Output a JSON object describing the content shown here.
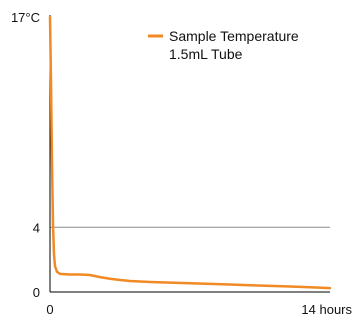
{
  "chart_data": {
    "type": "line",
    "title": "",
    "xlabel": "",
    "ylabel": "",
    "x_unit": "hours",
    "xlim": [
      0,
      14
    ],
    "ylim": [
      0,
      17
    ],
    "x_ticks": [
      {
        "value": 0,
        "label": "0"
      },
      {
        "value": 14,
        "label": "14 hours"
      }
    ],
    "y_ticks": [
      {
        "value": 0,
        "label": "0"
      },
      {
        "value": 4,
        "label": "4"
      },
      {
        "value": 17,
        "label": "17°C"
      }
    ],
    "reference_lines": [
      {
        "axis": "y",
        "value": 4,
        "color": "#8c8c8c"
      }
    ],
    "grid": false,
    "legend_placement": "top-right",
    "legend": {
      "line1": "Sample Temperature",
      "line2": "1.5mL Tube"
    },
    "series": [
      {
        "name": "Sample Temperature 1.5mL Tube",
        "color": "#f08a24",
        "points": [
          [
            0,
            17
          ],
          [
            0.05,
            13
          ],
          [
            0.1,
            8
          ],
          [
            0.15,
            4.2
          ],
          [
            0.2,
            2.3
          ],
          [
            0.25,
            1.6
          ],
          [
            0.35,
            1.25
          ],
          [
            0.5,
            1.12
          ],
          [
            1.0,
            1.08
          ],
          [
            1.5,
            1.08
          ],
          [
            2.0,
            1.05
          ],
          [
            2.5,
            0.92
          ],
          [
            3.0,
            0.82
          ],
          [
            3.5,
            0.74
          ],
          [
            4.0,
            0.68
          ],
          [
            5.0,
            0.62
          ],
          [
            6.0,
            0.58
          ],
          [
            7.0,
            0.54
          ],
          [
            8.0,
            0.5
          ],
          [
            9.0,
            0.46
          ],
          [
            10.0,
            0.42
          ],
          [
            11.0,
            0.38
          ],
          [
            12.0,
            0.34
          ],
          [
            13.0,
            0.29
          ],
          [
            14.0,
            0.24
          ]
        ]
      }
    ]
  }
}
